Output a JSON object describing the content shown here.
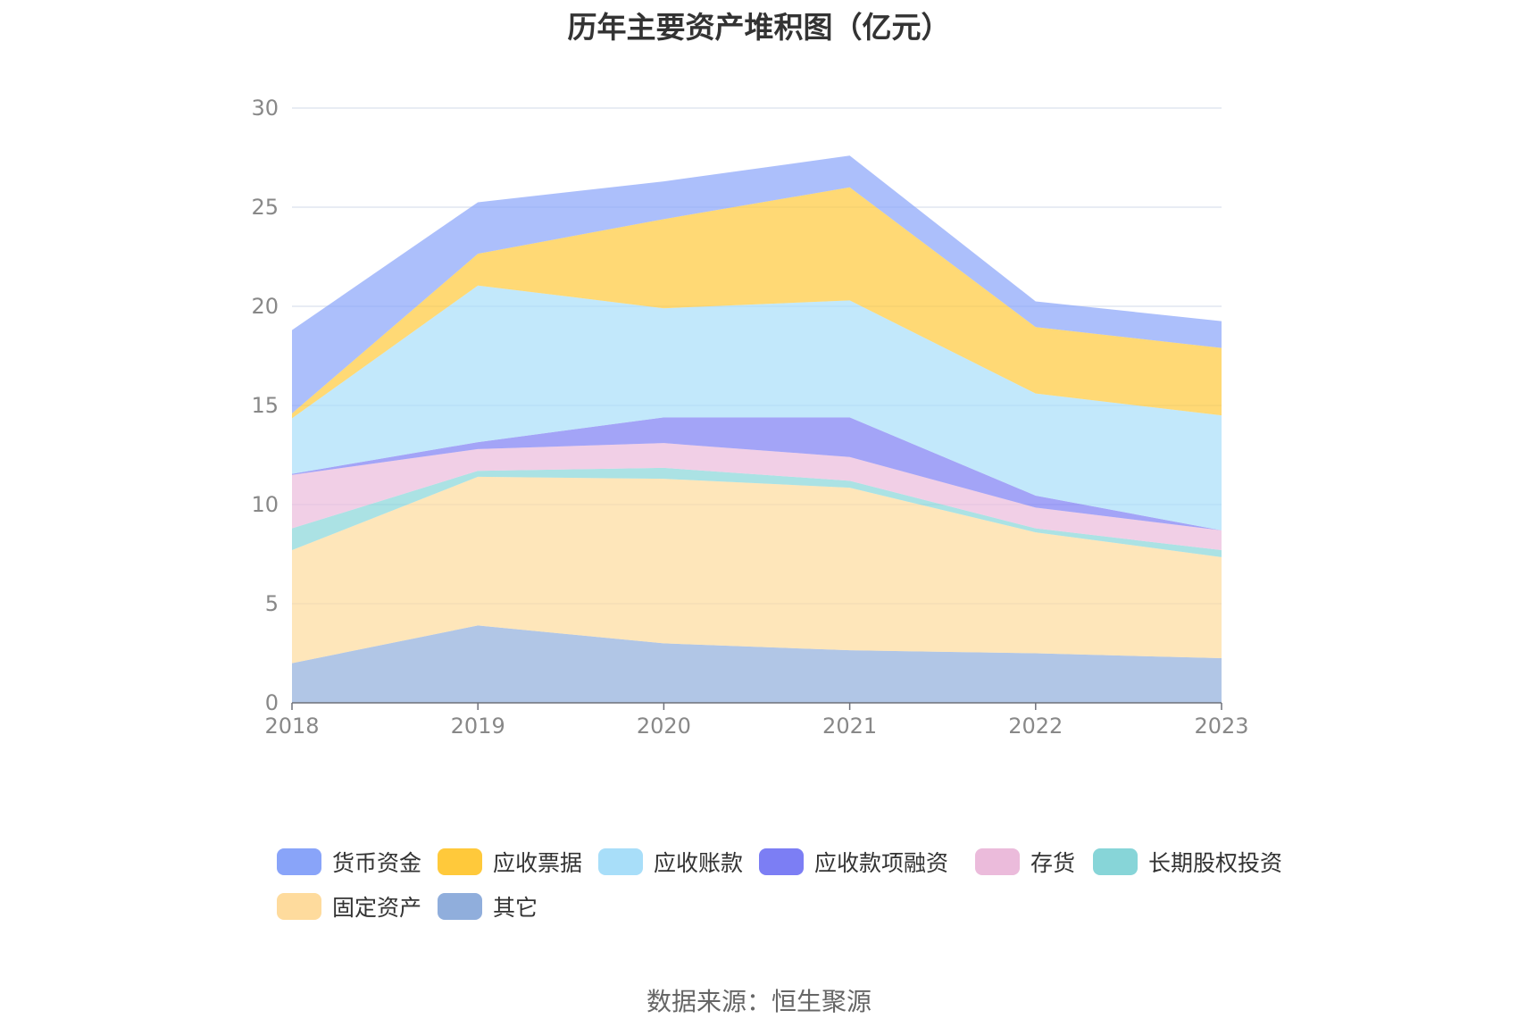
{
  "title": "历年主要资产堆积图（亿元）",
  "source": "数据来源：恒生聚源",
  "chart_data": {
    "type": "area",
    "stacked": true,
    "x": [
      "2018",
      "2019",
      "2020",
      "2021",
      "2022",
      "2023"
    ],
    "ylim": [
      0,
      30
    ],
    "yticks": [
      0,
      5,
      10,
      15,
      20,
      25,
      30
    ],
    "grid": true,
    "legend_position": "bottom",
    "series": [
      {
        "name": "其它",
        "color": "#90AEDC",
        "values": [
          2.0,
          3.9,
          3.0,
          2.65,
          2.5,
          2.25
        ]
      },
      {
        "name": "固定资产",
        "color": "#FEDB9D",
        "values": [
          5.7,
          7.5,
          8.3,
          8.2,
          6.1,
          5.1
        ]
      },
      {
        "name": "长期股权投资",
        "color": "#87D5D8",
        "values": [
          1.1,
          0.3,
          0.55,
          0.35,
          0.2,
          0.35
        ]
      },
      {
        "name": "存货",
        "color": "#EBBBDB",
        "values": [
          2.7,
          1.1,
          1.25,
          1.2,
          1.05,
          1.0
        ]
      },
      {
        "name": "应收款项融资",
        "color": "#7C7EF4",
        "values": [
          0.05,
          0.35,
          1.3,
          2.0,
          0.6,
          0.0
        ]
      },
      {
        "name": "应收账款",
        "color": "#A8DEF9",
        "values": [
          2.8,
          7.9,
          5.5,
          5.9,
          5.15,
          5.8
        ]
      },
      {
        "name": "应收票据",
        "color": "#FFC93B",
        "values": [
          0.25,
          1.6,
          4.5,
          5.7,
          3.35,
          3.4
        ]
      },
      {
        "name": "货币资金",
        "color": "#89A4F9",
        "values": [
          4.2,
          2.6,
          1.9,
          1.6,
          1.3,
          1.35
        ]
      }
    ],
    "legend_order": [
      "货币资金",
      "应收票据",
      "应收账款",
      "应收款项融资",
      "存货",
      "长期股权投资",
      "固定资产",
      "其它"
    ]
  }
}
